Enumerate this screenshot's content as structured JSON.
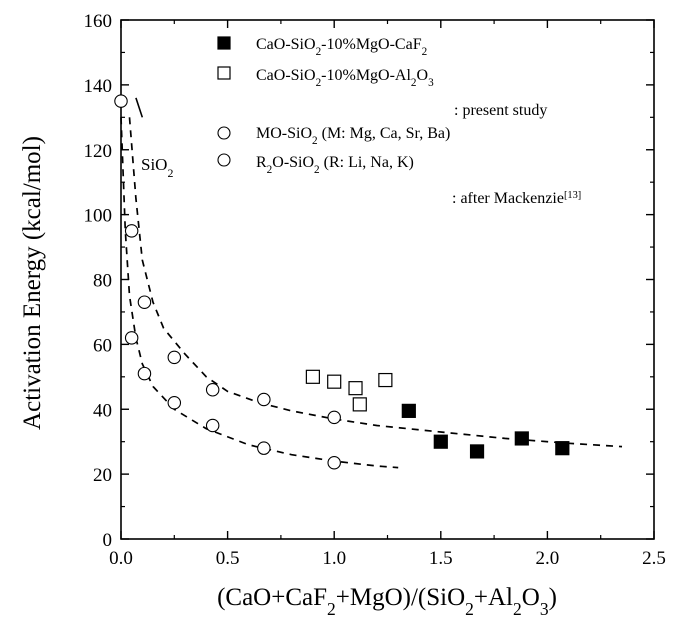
{
  "chart_data": {
    "type": "scatter",
    "title": "",
    "xlabel": "(CaO+CaF2+MgO)/(SiO2+Al2O3)",
    "ylabel": "Activation Energy (kcal/mol)",
    "xlim": [
      0.0,
      2.5
    ],
    "ylim": [
      0,
      160
    ],
    "x_ticks": [
      "0.0",
      "0.5",
      "1.0",
      "1.5",
      "2.0",
      "2.5"
    ],
    "y_ticks": [
      "0",
      "20",
      "40",
      "60",
      "80",
      "100",
      "120",
      "140",
      "160"
    ],
    "grid": false,
    "legend_position": "top-right",
    "series": [
      {
        "name": "CaO-SiO2-10%MgO-CaF2",
        "marker": "filled-square",
        "points": [
          [
            1.35,
            39.5
          ],
          [
            1.5,
            30
          ],
          [
            1.67,
            27
          ],
          [
            1.88,
            31
          ],
          [
            2.07,
            28
          ]
        ]
      },
      {
        "name": "CaO-SiO2-10%MgO-Al2O3",
        "marker": "open-square",
        "points": [
          [
            0.9,
            50
          ],
          [
            1.0,
            48.5
          ],
          [
            1.1,
            46.5
          ],
          [
            1.12,
            41.5
          ],
          [
            1.24,
            49
          ]
        ]
      },
      {
        "name": "MO-SiO2 (M: Mg, Ca, Sr, Ba)",
        "marker": "open-circle",
        "points": [
          [
            0.0,
            135
          ],
          [
            0.05,
            95
          ],
          [
            0.11,
            73
          ],
          [
            0.25,
            56
          ],
          [
            0.43,
            46
          ],
          [
            0.67,
            43
          ],
          [
            1.0,
            37.5
          ]
        ]
      },
      {
        "name": "R2O-SiO2 (R: Li, Na, K)",
        "marker": "open-circle",
        "points": [
          [
            0.05,
            62
          ],
          [
            0.11,
            51
          ],
          [
            0.25,
            42
          ],
          [
            0.43,
            35
          ],
          [
            0.67,
            28
          ],
          [
            1.0,
            23.5
          ]
        ]
      }
    ],
    "fit_curves": [
      {
        "style": "dashed",
        "points": [
          [
            0.04,
            130
          ],
          [
            0.07,
            105
          ],
          [
            0.1,
            86
          ],
          [
            0.15,
            73
          ],
          [
            0.2,
            65
          ],
          [
            0.3,
            57
          ],
          [
            0.4,
            50
          ],
          [
            0.5,
            45.5
          ],
          [
            0.65,
            42
          ],
          [
            0.8,
            39.5
          ],
          [
            1.0,
            37
          ],
          [
            1.2,
            35
          ],
          [
            1.5,
            33
          ],
          [
            1.8,
            31
          ],
          [
            2.1,
            29.5
          ],
          [
            2.35,
            28.5
          ]
        ]
      },
      {
        "style": "dashed",
        "points": [
          [
            0.0,
            130
          ],
          [
            0.02,
            95
          ],
          [
            0.04,
            75
          ],
          [
            0.07,
            62
          ],
          [
            0.1,
            54
          ],
          [
            0.15,
            47
          ],
          [
            0.25,
            40
          ],
          [
            0.4,
            34
          ],
          [
            0.6,
            29
          ],
          [
            0.8,
            26
          ],
          [
            1.0,
            24
          ],
          [
            1.2,
            22.5
          ],
          [
            1.3,
            22
          ]
        ]
      }
    ],
    "sio2_segment": [
      [
        0.07,
        136
      ],
      [
        0.1,
        130
      ]
    ],
    "annotations": [
      {
        "id": "present",
        "text": ": present study"
      },
      {
        "id": "mackenzie",
        "text": ": after Mackenzie",
        "superscript": "[13]"
      },
      {
        "id": "sio2",
        "text": "SiO2"
      }
    ]
  }
}
